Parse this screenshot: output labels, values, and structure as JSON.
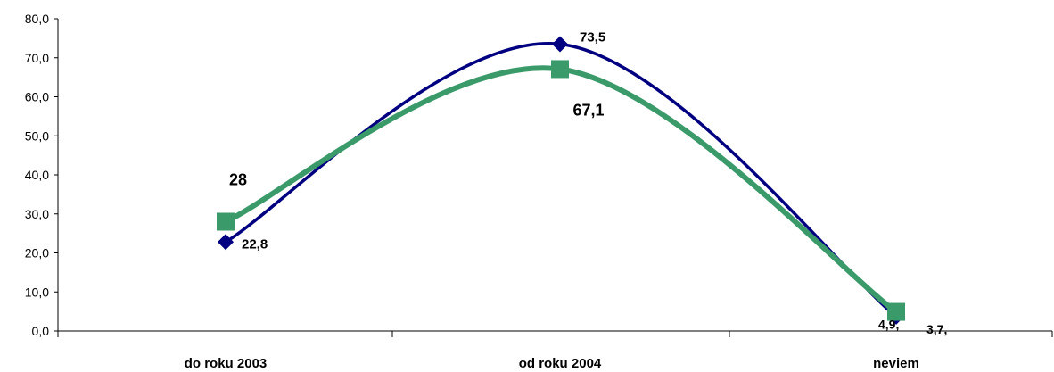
{
  "colors": {
    "series_a": "#000080",
    "series_b": "#3a9a6a",
    "axis": "#000000"
  },
  "chart_data": {
    "type": "line",
    "categories": [
      "do roku 2003",
      "od roku 2004",
      "neviem"
    ],
    "series": [
      {
        "values": [
          22.8,
          73.5,
          3.7
        ],
        "labels": [
          "22,8",
          "73,5",
          "3,7,"
        ],
        "marker": "diamond"
      },
      {
        "values": [
          28,
          67.1,
          4.9
        ],
        "labels": [
          "28",
          "67,1",
          "4,9,"
        ],
        "marker": "square"
      }
    ],
    "ylim": [
      0,
      80
    ],
    "yticks": [
      "0,0",
      "10,0",
      "20,0",
      "30,0",
      "40,0",
      "50,0",
      "60,0",
      "70,0",
      "80,0"
    ],
    "smooth": true,
    "grid": false,
    "legend": "none"
  }
}
